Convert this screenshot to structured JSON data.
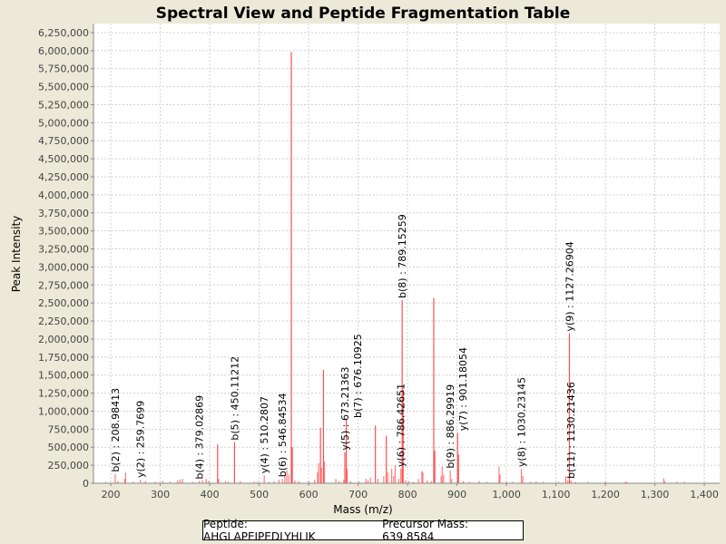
{
  "chart_data": {
    "type": "bar",
    "title": "Spectral View and Peptide Fragmentation Table",
    "xlabel": "Mass (m/z)",
    "ylabel": "Peak Intensity",
    "xlim": [
      165,
      1431
    ],
    "ylim": [
      0,
      6375000
    ],
    "xticks": [
      200,
      300,
      400,
      500,
      600,
      700,
      800,
      900,
      1000,
      1100,
      1200,
      1300,
      1400
    ],
    "xtick_labels": [
      "200",
      "300",
      "400",
      "500",
      "600",
      "700",
      "800",
      "900",
      "1,000",
      "1,100",
      "1,200",
      "1,300",
      "1,400"
    ],
    "yticks": [
      0,
      250000,
      500000,
      750000,
      1000000,
      1250000,
      1500000,
      1750000,
      2000000,
      2250000,
      2500000,
      2750000,
      3000000,
      3250000,
      3500000,
      3750000,
      4000000,
      4250000,
      4500000,
      4750000,
      5000000,
      5250000,
      5500000,
      5750000,
      6000000,
      6250000
    ],
    "ytick_labels": [
      "0",
      "250,000",
      "500,000",
      "750,000",
      "1,000,000",
      "1,250,000",
      "1,500,000",
      "1,750,000",
      "2,000,000",
      "2,250,000",
      "2,500,000",
      "2,750,000",
      "3,000,000",
      "3,250,000",
      "3,500,000",
      "3,750,000",
      "4,000,000",
      "4,250,000",
      "4,500,000",
      "4,750,000",
      "5,000,000",
      "5,250,000",
      "5,500,000",
      "5,750,000",
      "6,000,000",
      "6,250,000"
    ],
    "grid": true,
    "peak_color": "#ff5050",
    "peaks": [
      [
        190,
        20000
      ],
      [
        208.98,
        130000
      ],
      [
        214,
        30000
      ],
      [
        228,
        60000
      ],
      [
        230,
        150000
      ],
      [
        245,
        20000
      ],
      [
        259.77,
        50000
      ],
      [
        270,
        30000
      ],
      [
        290,
        20000
      ],
      [
        305,
        30000
      ],
      [
        320,
        20000
      ],
      [
        335,
        40000
      ],
      [
        340,
        50000
      ],
      [
        345,
        60000
      ],
      [
        365,
        20000
      ],
      [
        379.03,
        30000
      ],
      [
        385,
        40000
      ],
      [
        393,
        60000
      ],
      [
        398,
        30000
      ],
      [
        416,
        540000
      ],
      [
        418,
        60000
      ],
      [
        432,
        30000
      ],
      [
        437,
        20000
      ],
      [
        450.11,
        570000
      ],
      [
        462,
        30000
      ],
      [
        490,
        20000
      ],
      [
        497,
        20000
      ],
      [
        510.28,
        110000
      ],
      [
        520,
        20000
      ],
      [
        530,
        30000
      ],
      [
        540,
        50000
      ],
      [
        546.85,
        60000
      ],
      [
        552,
        90000
      ],
      [
        556,
        180000
      ],
      [
        560,
        120000
      ],
      [
        565,
        5980000
      ],
      [
        567,
        500000
      ],
      [
        572,
        40000
      ],
      [
        580,
        30000
      ],
      [
        600,
        30000
      ],
      [
        612,
        50000
      ],
      [
        618,
        150000
      ],
      [
        620,
        280000
      ],
      [
        624,
        770000
      ],
      [
        626,
        220000
      ],
      [
        630,
        1570000
      ],
      [
        632,
        300000
      ],
      [
        655,
        60000
      ],
      [
        662,
        30000
      ],
      [
        671,
        50000
      ],
      [
        673.21,
        430000
      ],
      [
        676.11,
        880000
      ],
      [
        678,
        200000
      ],
      [
        685,
        30000
      ],
      [
        702,
        20000
      ],
      [
        716,
        60000
      ],
      [
        720,
        40000
      ],
      [
        725,
        80000
      ],
      [
        735,
        800000
      ],
      [
        740,
        60000
      ],
      [
        752,
        100000
      ],
      [
        757,
        660000
      ],
      [
        760,
        150000
      ],
      [
        768,
        200000
      ],
      [
        772,
        100000
      ],
      [
        775,
        250000
      ],
      [
        782,
        60000
      ],
      [
        786.43,
        200000
      ],
      [
        789.15,
        2540000
      ],
      [
        791,
        1300000
      ],
      [
        796,
        40000
      ],
      [
        803,
        30000
      ],
      [
        812,
        20000
      ],
      [
        822,
        60000
      ],
      [
        829,
        170000
      ],
      [
        831,
        150000
      ],
      [
        840,
        40000
      ],
      [
        848,
        30000
      ],
      [
        853,
        2570000
      ],
      [
        855,
        450000
      ],
      [
        868,
        100000
      ],
      [
        870,
        230000
      ],
      [
        873,
        120000
      ],
      [
        886.3,
        180000
      ],
      [
        889,
        60000
      ],
      [
        901.18,
        700000
      ],
      [
        903,
        400000
      ],
      [
        913,
        30000
      ],
      [
        925,
        20000
      ],
      [
        945,
        30000
      ],
      [
        960,
        20000
      ],
      [
        985,
        230000
      ],
      [
        987,
        120000
      ],
      [
        1000,
        20000
      ],
      [
        1012,
        20000
      ],
      [
        1030.23,
        200000
      ],
      [
        1033,
        100000
      ],
      [
        1048,
        20000
      ],
      [
        1060,
        20000
      ],
      [
        1075,
        20000
      ],
      [
        1105,
        20000
      ],
      [
        1120,
        100000
      ],
      [
        1124,
        40000
      ],
      [
        1127.27,
        2080000
      ],
      [
        1130.21,
        40000
      ],
      [
        1140,
        20000
      ],
      [
        1165,
        20000
      ],
      [
        1200,
        20000
      ],
      [
        1240,
        20000
      ],
      [
        1243,
        20000
      ],
      [
        1318,
        70000
      ],
      [
        1320,
        30000
      ],
      [
        1345,
        20000
      ],
      [
        1360,
        20000
      ]
    ],
    "annotations": [
      {
        "label": "b(2) : 208.98413",
        "mass": 208.98,
        "intensity": 130000
      },
      {
        "label": "y(2) : 259.7699",
        "mass": 259.77,
        "intensity": 50000
      },
      {
        "label": "b(4) : 379.02869",
        "mass": 379.03,
        "intensity": 30000
      },
      {
        "label": "b(5) : 450.11212",
        "mass": 450.11,
        "intensity": 570000
      },
      {
        "label": "y(4) : 510.2807",
        "mass": 510.28,
        "intensity": 110000
      },
      {
        "label": "b(6) : 546.84534",
        "mass": 546.85,
        "intensity": 60000
      },
      {
        "label": "y(5) : 673.21363",
        "mass": 673.21,
        "intensity": 430000
      },
      {
        "label": "b(7) : 676.10925",
        "mass": 676.11,
        "intensity": 880000
      },
      {
        "label": "y(6) : 786.42651",
        "mass": 786.43,
        "intensity": 200000
      },
      {
        "label": "b(8) : 789.15259",
        "mass": 789.15,
        "intensity": 2540000
      },
      {
        "label": "b(9) : 886.29919",
        "mass": 886.3,
        "intensity": 180000
      },
      {
        "label": "y(7) : 901.18054",
        "mass": 901.18,
        "intensity": 700000
      },
      {
        "label": "y(8) : 1030.23145",
        "mass": 1030.23,
        "intensity": 200000
      },
      {
        "label": "y(9) : 1127.26904",
        "mass": 1127.27,
        "intensity": 2080000
      },
      {
        "label": "b(11) : 1130.21436",
        "mass": 1130.21,
        "intensity": 40000
      }
    ]
  },
  "legend": {
    "peptide": "Peptide: AHGLAPEIPEDLYHLIK",
    "precursor": "Precursor Mass: 639.8584"
  }
}
